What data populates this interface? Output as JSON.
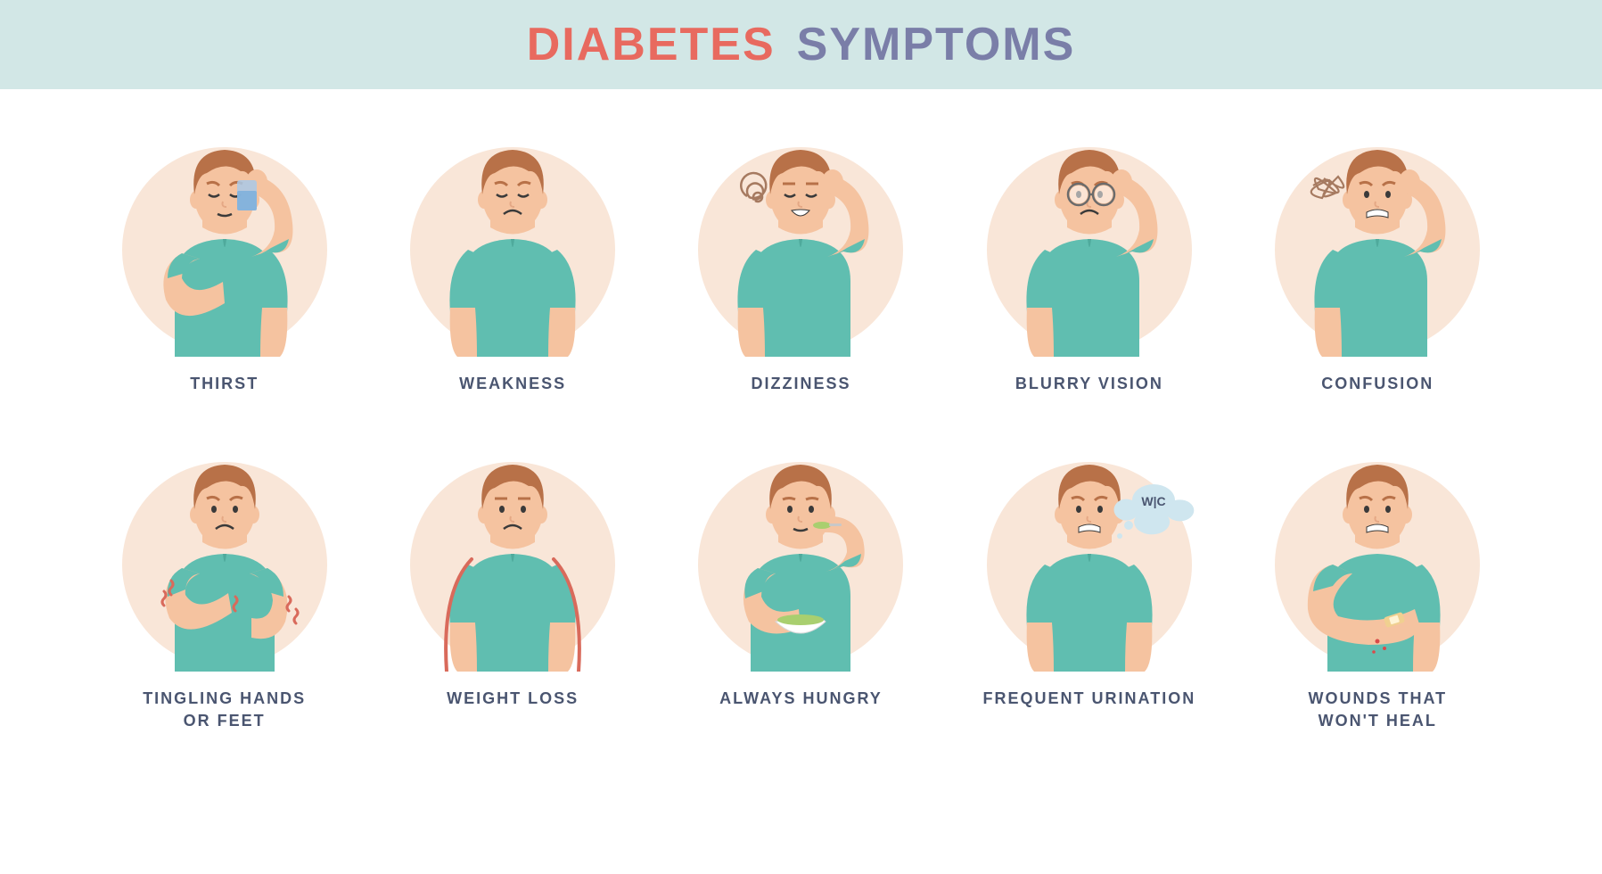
{
  "header": {
    "word1": "DIABETES",
    "word2": "SYMPTOMS",
    "color1": "#e86a5f",
    "color2": "#7a7ea8",
    "background": "#d2e7e6",
    "font_size": 52,
    "letter_spacing": 2
  },
  "styling": {
    "page_background": "#ffffff",
    "circle_background": "#f9e6d8",
    "skin": "#f5c3a0",
    "skin_shadow": "#e5a885",
    "hair": "#b87148",
    "shirt": "#60beb0",
    "shirt_shadow": "#4faa9c",
    "outline_red": "#d96a5b",
    "glass_blue": "#a9c9e8",
    "bowl_white": "#ffffff",
    "food_green": "#a9cf6f",
    "bandage": "#f0d090",
    "blood": "#d94a4a",
    "thought_bubble": "#cfe6ef",
    "scribble": "#a67a60",
    "label_color": "#4a5570",
    "label_font_size": 18,
    "circle_diameter": 230,
    "columns": 5,
    "rows": 2
  },
  "symptoms": [
    {
      "id": "thirst",
      "label": "THIRST",
      "variant": "thirst"
    },
    {
      "id": "weakness",
      "label": "WEAKNESS",
      "variant": "weakness"
    },
    {
      "id": "dizziness",
      "label": "DIZZINESS",
      "variant": "dizziness"
    },
    {
      "id": "blurry",
      "label": "BLURRY VISION",
      "variant": "blurry"
    },
    {
      "id": "confusion",
      "label": "CONFUSION",
      "variant": "confusion"
    },
    {
      "id": "tingling",
      "label": "TINGLING HANDS\nOR FEET",
      "variant": "tingling"
    },
    {
      "id": "weightloss",
      "label": "WEIGHT LOSS",
      "variant": "weightloss"
    },
    {
      "id": "hungry",
      "label": "ALWAYS HUNGRY",
      "variant": "hungry"
    },
    {
      "id": "urination",
      "label": "FREQUENT URINATION",
      "variant": "urination",
      "wc_text": "W|C"
    },
    {
      "id": "wounds",
      "label": "WOUNDS THAT\nWON'T HEAL",
      "variant": "wounds"
    }
  ]
}
